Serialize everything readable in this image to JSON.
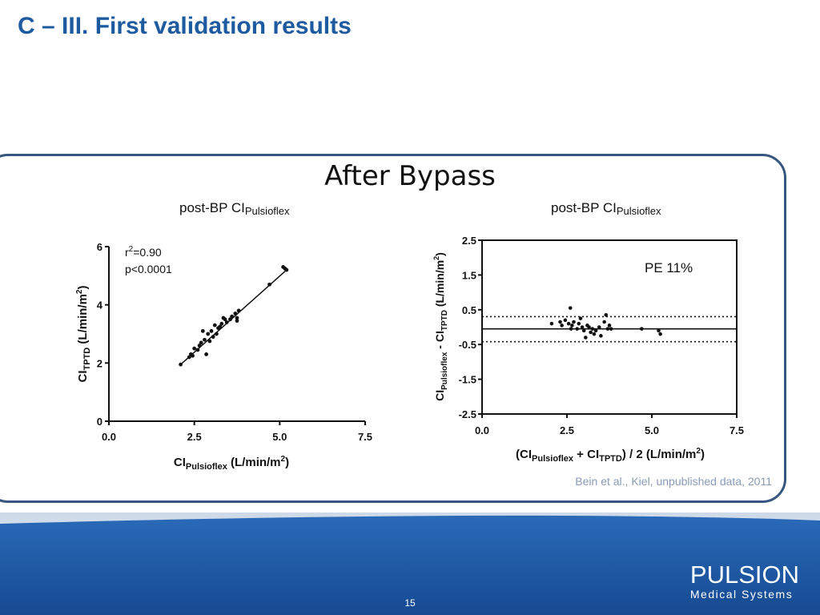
{
  "slide": {
    "title": "C – III. First validation results",
    "panel_title": "After Bypass",
    "source": "Bein et al., Kiel, unpublished data, 2011",
    "page_number": "15"
  },
  "logo": {
    "main": "PULSION",
    "sub": "Medical Systems"
  },
  "colors": {
    "title": "#1e5aa0",
    "panel_border": "#35567e",
    "footer": "#1e56a0",
    "source_text": "#8a9ab5"
  },
  "chart_data": [
    {
      "type": "scatter",
      "title_main": "post-BP CI",
      "title_sub": "Pulsioflex",
      "xlim": [
        0,
        7.5
      ],
      "ylim": [
        0,
        6
      ],
      "xticks": [
        "0.0",
        "2.5",
        "5.0",
        "7.5"
      ],
      "yticks": [
        "0",
        "2",
        "4",
        "6"
      ],
      "xlabel": {
        "main": "CI",
        "sub": "Pulsioflex",
        "unit": " (L/min/m",
        "sup": "2",
        "close": ")"
      },
      "ylabel": {
        "main": "CI",
        "sub": "TPTD",
        "unit": " (L/min/m",
        "sup": "2",
        "close": ")"
      },
      "annotation": {
        "r_label": "r",
        "r_sup": "2",
        "r_value": "=0.90",
        "p": "p<0.0001"
      },
      "regression": {
        "x": [
          2.1,
          5.2
        ],
        "y": [
          1.95,
          5.2
        ]
      },
      "points": [
        [
          2.1,
          1.95
        ],
        [
          2.35,
          2.2
        ],
        [
          2.4,
          2.3
        ],
        [
          2.45,
          2.25
        ],
        [
          2.5,
          2.5
        ],
        [
          2.6,
          2.45
        ],
        [
          2.65,
          2.6
        ],
        [
          2.7,
          2.7
        ],
        [
          2.75,
          3.1
        ],
        [
          2.8,
          2.8
        ],
        [
          2.85,
          2.3
        ],
        [
          2.9,
          3.0
        ],
        [
          2.95,
          2.75
        ],
        [
          3.0,
          3.1
        ],
        [
          3.05,
          2.9
        ],
        [
          3.1,
          3.3
        ],
        [
          3.15,
          3.0
        ],
        [
          3.2,
          3.2
        ],
        [
          3.25,
          3.25
        ],
        [
          3.3,
          3.35
        ],
        [
          3.35,
          3.55
        ],
        [
          3.4,
          3.5
        ],
        [
          3.45,
          3.4
        ],
        [
          3.55,
          3.5
        ],
        [
          3.6,
          3.6
        ],
        [
          3.7,
          3.7
        ],
        [
          3.75,
          3.55
        ],
        [
          3.8,
          3.8
        ],
        [
          3.75,
          3.45
        ],
        [
          4.7,
          4.7
        ],
        [
          5.1,
          5.3
        ],
        [
          5.15,
          5.25
        ],
        [
          5.2,
          5.2
        ]
      ]
    },
    {
      "type": "scatter",
      "subtype": "bland-altman",
      "title_main": "post-BP CI",
      "title_sub": "Pulsioflex",
      "xlim": [
        0,
        7.5
      ],
      "ylim": [
        -2.5,
        2.5
      ],
      "xticks": [
        "0.0",
        "2.5",
        "5.0",
        "7.5"
      ],
      "yticks": [
        "2.5",
        "1.5",
        "0.5",
        "-0.5",
        "-1.5",
        "-2.5"
      ],
      "xlabel": {
        "open": "(CI",
        "sub1": "Pulsioflex",
        "mid": " + CI",
        "sub2": "TPTD",
        "rest": ") / 2 (L/min/m",
        "sup": "2",
        "close": ")"
      },
      "ylabel": {
        "main": "CI",
        "sub1": "Pulsioflex",
        "mid": " - CI",
        "sub2": "TPTD",
        "unit": " (L/min/m",
        "sup": "2",
        "close": ")"
      },
      "annotation": "PE 11%",
      "mean_line": -0.05,
      "limits": [
        0.3,
        -0.42
      ],
      "points": [
        [
          2.05,
          0.1
        ],
        [
          2.3,
          0.15
        ],
        [
          2.35,
          0.05
        ],
        [
          2.45,
          0.2
        ],
        [
          2.55,
          0.1
        ],
        [
          2.6,
          0.55
        ],
        [
          2.62,
          -0.05
        ],
        [
          2.65,
          0.05
        ],
        [
          2.7,
          0.15
        ],
        [
          2.8,
          -0.05
        ],
        [
          2.85,
          0.1
        ],
        [
          2.9,
          0.25
        ],
        [
          2.95,
          0.0
        ],
        [
          3.0,
          -0.1
        ],
        [
          3.05,
          -0.3
        ],
        [
          3.1,
          0.05
        ],
        [
          3.15,
          0.0
        ],
        [
          3.2,
          -0.15
        ],
        [
          3.25,
          -0.05
        ],
        [
          3.3,
          -0.2
        ],
        [
          3.35,
          -0.1
        ],
        [
          3.45,
          0.0
        ],
        [
          3.5,
          -0.25
        ],
        [
          3.6,
          0.15
        ],
        [
          3.65,
          0.35
        ],
        [
          3.7,
          -0.05
        ],
        [
          3.75,
          0.05
        ],
        [
          3.8,
          -0.05
        ],
        [
          4.7,
          -0.05
        ],
        [
          5.2,
          -0.1
        ],
        [
          5.25,
          -0.2
        ]
      ]
    }
  ]
}
